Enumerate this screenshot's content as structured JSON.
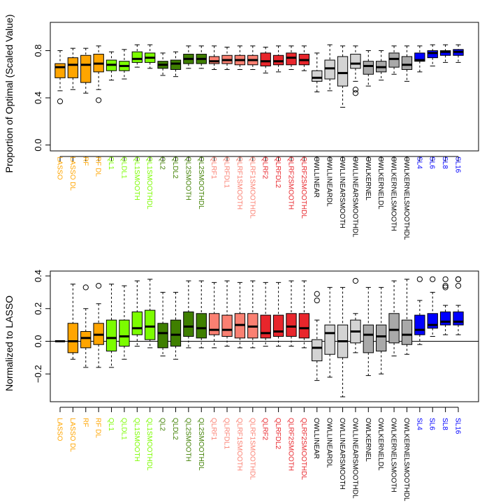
{
  "chart_data": [
    {
      "type": "boxplot",
      "ylabel": "Proportion of Optimal (Scaled Value)",
      "ylim": [
        -0.05,
        1.04
      ],
      "yticks": [
        0.0,
        0.4,
        0.8
      ],
      "ytick_labels": [
        "0.0",
        "0.4",
        "0.8"
      ],
      "grid": false,
      "categories": [
        {
          "label": "LASSO",
          "color": "#FFA500",
          "stats": {
            "whislo": 0.46,
            "q1": 0.57,
            "median": 0.66,
            "q3": 0.69,
            "whishi": 0.8
          },
          "outliers": [
            0.37
          ]
        },
        {
          "label": "LASSO DL",
          "color": "#FFA500",
          "stats": {
            "whislo": 0.47,
            "q1": 0.57,
            "median": 0.68,
            "q3": 0.74,
            "whishi": 0.82
          },
          "outliers": []
        },
        {
          "label": "RF",
          "color": "#FFA500",
          "stats": {
            "whislo": 0.44,
            "q1": 0.53,
            "median": 0.68,
            "q3": 0.76,
            "whishi": 0.82
          },
          "outliers": []
        },
        {
          "label": "RF DL",
          "color": "#FFA500",
          "stats": {
            "whislo": 0.47,
            "q1": 0.62,
            "median": 0.69,
            "q3": 0.77,
            "whishi": 0.84
          },
          "outliers": [
            0.38
          ]
        },
        {
          "label": "QL1",
          "color": "#7CFC00",
          "stats": {
            "whislo": 0.55,
            "q1": 0.63,
            "median": 0.68,
            "q3": 0.72,
            "whishi": 0.79
          },
          "outliers": []
        },
        {
          "label": "QLDL1",
          "color": "#7CFC00",
          "stats": {
            "whislo": 0.56,
            "q1": 0.63,
            "median": 0.67,
            "q3": 0.71,
            "whishi": 0.81
          },
          "outliers": []
        },
        {
          "label": "QL1SMOOTH",
          "color": "#7CFC00",
          "stats": {
            "whislo": 0.66,
            "q1": 0.7,
            "median": 0.73,
            "q3": 0.79,
            "whishi": 0.85
          },
          "outliers": []
        },
        {
          "label": "QL1SMOOTHDL",
          "color": "#7CFC00",
          "stats": {
            "whislo": 0.65,
            "q1": 0.7,
            "median": 0.74,
            "q3": 0.78,
            "whishi": 0.85
          },
          "outliers": []
        },
        {
          "label": "QL2",
          "color": "#3F7F00",
          "stats": {
            "whislo": 0.59,
            "q1": 0.65,
            "median": 0.68,
            "q3": 0.71,
            "whishi": 0.78
          },
          "outliers": []
        },
        {
          "label": "QLDL2",
          "color": "#3F7F00",
          "stats": {
            "whislo": 0.58,
            "q1": 0.64,
            "median": 0.69,
            "q3": 0.72,
            "whishi": 0.79
          },
          "outliers": []
        },
        {
          "label": "QL2SMOOTH",
          "color": "#3F7F00",
          "stats": {
            "whislo": 0.65,
            "q1": 0.69,
            "median": 0.73,
            "q3": 0.77,
            "whishi": 0.84
          },
          "outliers": []
        },
        {
          "label": "QL2SMOOTHDL",
          "color": "#3F7F00",
          "stats": {
            "whislo": 0.65,
            "q1": 0.69,
            "median": 0.73,
            "q3": 0.77,
            "whishi": 0.84
          },
          "outliers": []
        },
        {
          "label": "QLRF1",
          "color": "#FA8072",
          "stats": {
            "whislo": 0.64,
            "q1": 0.69,
            "median": 0.71,
            "q3": 0.75,
            "whishi": 0.84
          },
          "outliers": []
        },
        {
          "label": "QLRFDL1",
          "color": "#FA8072",
          "stats": {
            "whislo": 0.64,
            "q1": 0.69,
            "median": 0.72,
            "q3": 0.76,
            "whishi": 0.83
          },
          "outliers": []
        },
        {
          "label": "QLRF1SMOOTH",
          "color": "#FA8072",
          "stats": {
            "whislo": 0.64,
            "q1": 0.68,
            "median": 0.72,
            "q3": 0.76,
            "whishi": 0.84
          },
          "outliers": []
        },
        {
          "label": "QLRF1SMOOTHDL",
          "color": "#FA8072",
          "stats": {
            "whislo": 0.64,
            "q1": 0.68,
            "median": 0.72,
            "q3": 0.76,
            "whishi": 0.84
          },
          "outliers": []
        },
        {
          "label": "QLRF2",
          "color": "#E8262C",
          "stats": {
            "whislo": 0.61,
            "q1": 0.67,
            "median": 0.71,
            "q3": 0.78,
            "whishi": 0.83
          },
          "outliers": []
        },
        {
          "label": "QLRFDL2",
          "color": "#E8262C",
          "stats": {
            "whislo": 0.62,
            "q1": 0.68,
            "median": 0.71,
            "q3": 0.76,
            "whishi": 0.84
          },
          "outliers": []
        },
        {
          "label": "QLRF2SMOOTH",
          "color": "#E8262C",
          "stats": {
            "whislo": 0.64,
            "q1": 0.68,
            "median": 0.74,
            "q3": 0.78,
            "whishi": 0.84
          },
          "outliers": []
        },
        {
          "label": "QLRF2SMOOTHDL",
          "color": "#E8262C",
          "stats": {
            "whislo": 0.63,
            "q1": 0.68,
            "median": 0.72,
            "q3": 0.77,
            "whishi": 0.84
          },
          "outliers": []
        },
        {
          "label": "OWLLINEAR",
          "color": "#D3D3D3",
          "stats": {
            "whislo": 0.45,
            "q1": 0.54,
            "median": 0.57,
            "q3": 0.63,
            "whishi": 0.78
          },
          "outliers": []
        },
        {
          "label": "OWLLINEARDL",
          "color": "#D3D3D3",
          "stats": {
            "whislo": 0.46,
            "q1": 0.56,
            "median": 0.65,
            "q3": 0.72,
            "whishi": 0.85
          },
          "outliers": []
        },
        {
          "label": "OWLLINEARSMOOTH",
          "color": "#D3D3D3",
          "stats": {
            "whislo": 0.32,
            "q1": 0.5,
            "median": 0.61,
            "q3": 0.75,
            "whishi": 0.84
          },
          "outliers": []
        },
        {
          "label": "OWLLINEARSMOOTHDL",
          "color": "#D3D3D3",
          "stats": {
            "whislo": 0.54,
            "q1": 0.65,
            "median": 0.69,
            "q3": 0.77,
            "whishi": 0.84
          },
          "outliers": [
            0.44,
            0.47
          ]
        },
        {
          "label": "OWLKERNEL",
          "color": "#A9A9A9",
          "stats": {
            "whislo": 0.5,
            "q1": 0.6,
            "median": 0.67,
            "q3": 0.71,
            "whishi": 0.8
          },
          "outliers": []
        },
        {
          "label": "OWLKERNELDL",
          "color": "#A9A9A9",
          "stats": {
            "whislo": 0.55,
            "q1": 0.62,
            "median": 0.66,
            "q3": 0.71,
            "whishi": 0.8
          },
          "outliers": []
        },
        {
          "label": "OWLKERNELSMOOTH",
          "color": "#A9A9A9",
          "stats": {
            "whislo": 0.6,
            "q1": 0.66,
            "median": 0.73,
            "q3": 0.78,
            "whishi": 0.84
          },
          "outliers": []
        },
        {
          "label": "OWLKERNELSMOOTHDL",
          "color": "#A9A9A9",
          "stats": {
            "whislo": 0.54,
            "q1": 0.64,
            "median": 0.68,
            "q3": 0.75,
            "whishi": 0.84
          },
          "outliers": []
        },
        {
          "label": "SL4",
          "color": "#0000FF",
          "stats": {
            "whislo": 0.62,
            "q1": 0.71,
            "median": 0.72,
            "q3": 0.78,
            "whishi": 0.84
          },
          "outliers": []
        },
        {
          "label": "SL6",
          "color": "#0000FF",
          "stats": {
            "whislo": 0.67,
            "q1": 0.74,
            "median": 0.78,
            "q3": 0.8,
            "whishi": 0.85
          },
          "outliers": []
        },
        {
          "label": "SL8",
          "color": "#0000FF",
          "stats": {
            "whislo": 0.7,
            "q1": 0.76,
            "median": 0.79,
            "q3": 0.8,
            "whishi": 0.85
          },
          "outliers": []
        },
        {
          "label": "SL16",
          "color": "#0000FF",
          "stats": {
            "whislo": 0.7,
            "q1": 0.76,
            "median": 0.79,
            "q3": 0.81,
            "whishi": 0.85
          },
          "outliers": []
        }
      ]
    },
    {
      "type": "boxplot",
      "ylabel": "Normalized to LASSO",
      "ylim": [
        -0.37,
        0.43
      ],
      "yticks": [
        -0.2,
        0.0,
        0.2,
        0.4
      ],
      "ytick_labels": [
        "−0.2",
        "0.0",
        "0.2",
        "0.4"
      ],
      "reference_line": 0.0,
      "grid": false,
      "categories": [
        {
          "label": "LASSO",
          "color": "#FFA500",
          "stats": {
            "whislo": 0.0,
            "q1": 0.0,
            "median": 0.0,
            "q3": 0.0,
            "whishi": 0.0
          },
          "outliers": []
        },
        {
          "label": "LASSO DL",
          "color": "#FFA500",
          "stats": {
            "whislo": -0.11,
            "q1": -0.07,
            "median": 0.0,
            "q3": 0.11,
            "whishi": 0.35
          },
          "outliers": []
        },
        {
          "label": "RF",
          "color": "#FFA500",
          "stats": {
            "whislo": -0.16,
            "q1": -0.04,
            "median": 0.02,
            "q3": 0.06,
            "whishi": 0.2
          },
          "outliers": [
            0.33
          ]
        },
        {
          "label": "RF DL",
          "color": "#FFA500",
          "stats": {
            "whislo": -0.16,
            "q1": -0.02,
            "median": 0.04,
            "q3": 0.11,
            "whishi": 0.23
          },
          "outliers": [
            0.34
          ]
        },
        {
          "label": "QL1",
          "color": "#7CFC00",
          "stats": {
            "whislo": -0.16,
            "q1": -0.06,
            "median": 0.02,
            "q3": 0.13,
            "whishi": 0.35
          },
          "outliers": []
        },
        {
          "label": "QLDL1",
          "color": "#7CFC00",
          "stats": {
            "whislo": -0.11,
            "q1": -0.03,
            "median": 0.03,
            "q3": 0.13,
            "whishi": 0.34
          },
          "outliers": []
        },
        {
          "label": "QL1SMOOTH",
          "color": "#7CFC00",
          "stats": {
            "whislo": -0.03,
            "q1": 0.04,
            "median": 0.08,
            "q3": 0.18,
            "whishi": 0.37
          },
          "outliers": []
        },
        {
          "label": "QL1SMOOTHDL",
          "color": "#7CFC00",
          "stats": {
            "whislo": -0.04,
            "q1": 0.01,
            "median": 0.09,
            "q3": 0.19,
            "whishi": 0.38
          },
          "outliers": []
        },
        {
          "label": "QL2",
          "color": "#3F7F00",
          "stats": {
            "whislo": -0.09,
            "q1": -0.04,
            "median": 0.05,
            "q3": 0.11,
            "whishi": 0.3
          },
          "outliers": []
        },
        {
          "label": "QLDL2",
          "color": "#3F7F00",
          "stats": {
            "whislo": -0.11,
            "q1": -0.03,
            "median": 0.04,
            "q3": 0.13,
            "whishi": 0.3
          },
          "outliers": []
        },
        {
          "label": "QL2SMOOTH",
          "color": "#3F7F00",
          "stats": {
            "whislo": -0.04,
            "q1": 0.03,
            "median": 0.09,
            "q3": 0.18,
            "whishi": 0.37
          },
          "outliers": []
        },
        {
          "label": "QL2SMOOTHDL",
          "color": "#3F7F00",
          "stats": {
            "whislo": -0.04,
            "q1": 0.02,
            "median": 0.08,
            "q3": 0.17,
            "whishi": 0.37
          },
          "outliers": []
        },
        {
          "label": "QLRF1",
          "color": "#FA8072",
          "stats": {
            "whislo": -0.04,
            "q1": 0.04,
            "median": 0.07,
            "q3": 0.17,
            "whishi": 0.36
          },
          "outliers": []
        },
        {
          "label": "QLRFDL1",
          "color": "#FA8072",
          "stats": {
            "whislo": -0.03,
            "q1": 0.03,
            "median": 0.07,
            "q3": 0.16,
            "whishi": 0.37
          },
          "outliers": []
        },
        {
          "label": "QLRF1SMOOTH",
          "color": "#FA8072",
          "stats": {
            "whislo": -0.04,
            "q1": 0.02,
            "median": 0.1,
            "q3": 0.17,
            "whishi": 0.36
          },
          "outliers": []
        },
        {
          "label": "QLRF1SMOOTHDL",
          "color": "#FA8072",
          "stats": {
            "whislo": -0.04,
            "q1": 0.02,
            "median": 0.09,
            "q3": 0.17,
            "whishi": 0.37
          },
          "outliers": []
        },
        {
          "label": "QLRF2",
          "color": "#E8262C",
          "stats": {
            "whislo": -0.03,
            "q1": 0.02,
            "median": 0.05,
            "q3": 0.16,
            "whishi": 0.36
          },
          "outliers": []
        },
        {
          "label": "QLRFDL2",
          "color": "#E8262C",
          "stats": {
            "whislo": -0.03,
            "q1": 0.03,
            "median": 0.06,
            "q3": 0.16,
            "whishi": 0.36
          },
          "outliers": []
        },
        {
          "label": "QLRF2SMOOTH",
          "color": "#E8262C",
          "stats": {
            "whislo": -0.03,
            "q1": 0.03,
            "median": 0.09,
            "q3": 0.17,
            "whishi": 0.37
          },
          "outliers": []
        },
        {
          "label": "QLRF2SMOOTHDL",
          "color": "#E8262C",
          "stats": {
            "whislo": -0.04,
            "q1": 0.02,
            "median": 0.08,
            "q3": 0.17,
            "whishi": 0.37
          },
          "outliers": []
        },
        {
          "label": "OWLLINEAR",
          "color": "#D3D3D3",
          "stats": {
            "whislo": -0.24,
            "q1": -0.12,
            "median": -0.04,
            "q3": 0.01,
            "whishi": 0.13
          },
          "outliers": [
            0.25,
            0.29
          ]
        },
        {
          "label": "OWLLINEARDL",
          "color": "#D3D3D3",
          "stats": {
            "whislo": -0.22,
            "q1": -0.08,
            "median": 0.05,
            "q3": 0.1,
            "whishi": 0.33
          },
          "outliers": []
        },
        {
          "label": "OWLLINEARSMOOTH",
          "color": "#D3D3D3",
          "stats": {
            "whislo": -0.34,
            "q1": -0.1,
            "median": 0.0,
            "q3": 0.1,
            "whishi": 0.33
          },
          "outliers": []
        },
        {
          "label": "OWLLINEARSMOOTHDL",
          "color": "#D3D3D3",
          "stats": {
            "whislo": -0.07,
            "q1": -0.01,
            "median": 0.06,
            "q3": 0.13,
            "whishi": 0.17
          },
          "outliers": [
            0.37
          ]
        },
        {
          "label": "OWLKERNEL",
          "color": "#A9A9A9",
          "stats": {
            "whislo": -0.21,
            "q1": -0.07,
            "median": 0.04,
            "q3": 0.1,
            "whishi": 0.33
          },
          "outliers": []
        },
        {
          "label": "OWLKERNELDL",
          "color": "#A9A9A9",
          "stats": {
            "whislo": -0.2,
            "q1": -0.06,
            "median": 0.03,
            "q3": 0.1,
            "whishi": 0.33
          },
          "outliers": []
        },
        {
          "label": "OWLKERNELSMOOTH",
          "color": "#A9A9A9",
          "stats": {
            "whislo": -0.09,
            "q1": -0.01,
            "median": 0.07,
            "q3": 0.17,
            "whishi": 0.37
          },
          "outliers": []
        },
        {
          "label": "OWLKERNELSMOOTHDL",
          "color": "#A9A9A9",
          "stats": {
            "whislo": -0.08,
            "q1": -0.02,
            "median": 0.04,
            "q3": 0.13,
            "whishi": 0.38
          },
          "outliers": []
        },
        {
          "label": "SL4",
          "color": "#0000FF",
          "stats": {
            "whislo": -0.02,
            "q1": 0.04,
            "median": 0.07,
            "q3": 0.16,
            "whishi": 0.25
          },
          "outliers": [
            0.38
          ]
        },
        {
          "label": "SL6",
          "color": "#0000FF",
          "stats": {
            "whislo": 0.03,
            "q1": 0.08,
            "median": 0.1,
            "q3": 0.17,
            "whishi": 0.3
          },
          "outliers": [
            0.38
          ]
        },
        {
          "label": "SL8",
          "color": "#0000FF",
          "stats": {
            "whislo": 0.04,
            "q1": 0.1,
            "median": 0.12,
            "q3": 0.18,
            "whishi": 0.22
          },
          "outliers": [
            0.33,
            0.34,
            0.38
          ]
        },
        {
          "label": "SL16",
          "color": "#0000FF",
          "stats": {
            "whislo": 0.04,
            "q1": 0.1,
            "median": 0.12,
            "q3": 0.18,
            "whishi": 0.22
          },
          "outliers": [
            0.34,
            0.38,
            0.38
          ]
        }
      ]
    }
  ]
}
